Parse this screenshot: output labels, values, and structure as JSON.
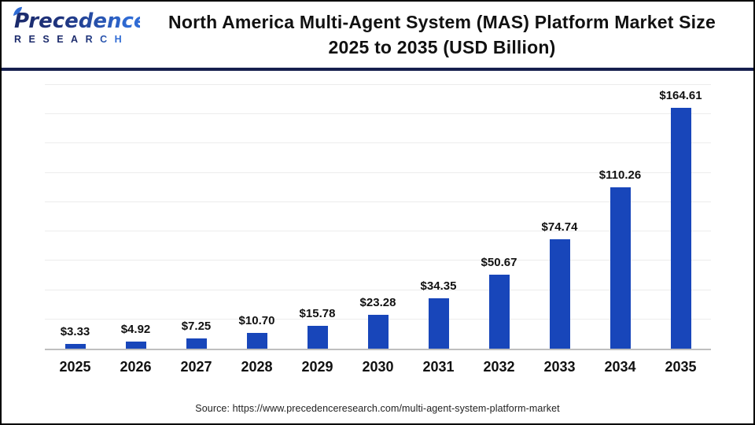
{
  "header": {
    "logo": {
      "name": "Precedence",
      "subtitle": "RESEARCH"
    },
    "title_line1": "North America Multi-Agent System (MAS) Platform Market Size",
    "title_line2": "2025 to 2035 (USD Billion)"
  },
  "chart_data": {
    "type": "bar",
    "title": "North America Multi-Agent System (MAS) Platform Market Size 2025 to 2035 (USD Billion)",
    "categories": [
      "2025",
      "2026",
      "2027",
      "2028",
      "2029",
      "2030",
      "2031",
      "2032",
      "2033",
      "2034",
      "2035"
    ],
    "values": [
      3.33,
      4.92,
      7.25,
      10.7,
      15.78,
      23.28,
      34.35,
      50.67,
      74.74,
      110.26,
      164.61
    ],
    "labels": [
      "$3.33",
      "$4.92",
      "$7.25",
      "$10.70",
      "$15.78",
      "$23.28",
      "$34.35",
      "$50.67",
      "$74.74",
      "$110.26",
      "$164.61"
    ],
    "xlabel": "",
    "ylabel": "",
    "ylim": [
      0,
      180
    ],
    "grid_step": 20,
    "grid": true,
    "legend": false,
    "bar_color": "#1846ba",
    "gridline_color": "#ececec",
    "axis_color": "#bfbfbf",
    "label_color": "#111111"
  },
  "footer": {
    "source": "Source: https://www.precedenceresearch.com/multi-agent-system-platform-market"
  }
}
